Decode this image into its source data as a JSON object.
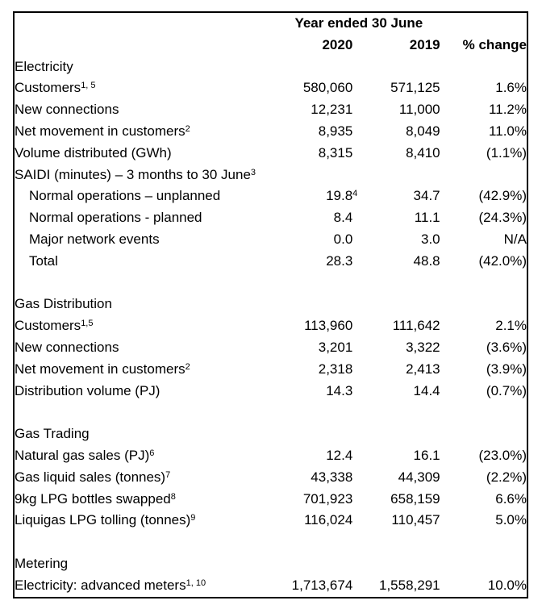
{
  "table": {
    "header": {
      "year_ended": "Year ended 30 June",
      "col_2020": "2020",
      "col_2019": "2019",
      "col_change": "% change"
    },
    "sections": [
      {
        "title": "Electricity",
        "rows": [
          {
            "label": "Customers",
            "sup": "1, 5",
            "v2020": "580,060",
            "v2019": "571,125",
            "change": "1.6%"
          },
          {
            "label": "New connections",
            "v2020": "12,231",
            "v2019": "11,000",
            "change": "11.2%"
          },
          {
            "label": "Net movement in customers",
            "sup": "2",
            "v2020": "8,935",
            "v2019": "8,049",
            "change": "11.0%"
          },
          {
            "label": "Volume distributed (GWh)",
            "v2020": "8,315",
            "v2019": "8,410",
            "change": "(1.1%)"
          },
          {
            "label": "SAIDI (minutes) – 3 months to 30 June",
            "sup": "3",
            "v2020": "",
            "v2019": "",
            "change": ""
          },
          {
            "label": "Normal operations – unplanned",
            "indent": true,
            "v2020": "19.8",
            "v2020_sup": "4",
            "v2019": "34.7",
            "change": "(42.9%)"
          },
          {
            "label": "Normal operations - planned",
            "indent": true,
            "v2020": "8.4",
            "v2019": "11.1",
            "change": "(24.3%)"
          },
          {
            "label": "Major network events",
            "indent": true,
            "v2020": "0.0",
            "v2019": "3.0",
            "change": "N/A"
          },
          {
            "label": "Total",
            "indent": true,
            "v2020": "28.3",
            "v2019": "48.8",
            "change": "(42.0%)"
          }
        ]
      },
      {
        "title": "Gas Distribution",
        "rows": [
          {
            "label": "Customers",
            "sup": "1,5",
            "v2020": "113,960",
            "v2019": "111,642",
            "change": "2.1%"
          },
          {
            "label": "New connections",
            "v2020": "3,201",
            "v2019": "3,322",
            "change": "(3.6%)"
          },
          {
            "label": "Net movement in customers",
            "sup": "2",
            "v2020": "2,318",
            "v2019": "2,413",
            "change": "(3.9%)"
          },
          {
            "label": "Distribution volume (PJ)",
            "v2020": "14.3",
            "v2019": "14.4",
            "change": "(0.7%)"
          }
        ]
      },
      {
        "title": "Gas Trading",
        "rows": [
          {
            "label": "Natural gas sales (PJ)",
            "sup": "6",
            "v2020": "12.4",
            "v2019": "16.1",
            "change": "(23.0%)"
          },
          {
            "label": "Gas liquid sales (tonnes)",
            "sup": "7",
            "v2020": "43,338",
            "v2019": "44,309",
            "change": "(2.2%)"
          },
          {
            "label": "9kg LPG bottles swapped",
            "sup": "8",
            "v2020": "701,923",
            "v2019": "658,159",
            "change": "6.6%"
          },
          {
            "label": "Liquigas LPG tolling (tonnes)",
            "sup": "9",
            "v2020": "116,024",
            "v2019": "110,457",
            "change": "5.0%"
          }
        ]
      },
      {
        "title": "Metering",
        "rows": [
          {
            "label": "Electricity: advanced meters",
            "sup": "1, 10",
            "v2020": "1,713,674",
            "v2019": "1,558,291",
            "change": "10.0%"
          }
        ]
      }
    ]
  }
}
